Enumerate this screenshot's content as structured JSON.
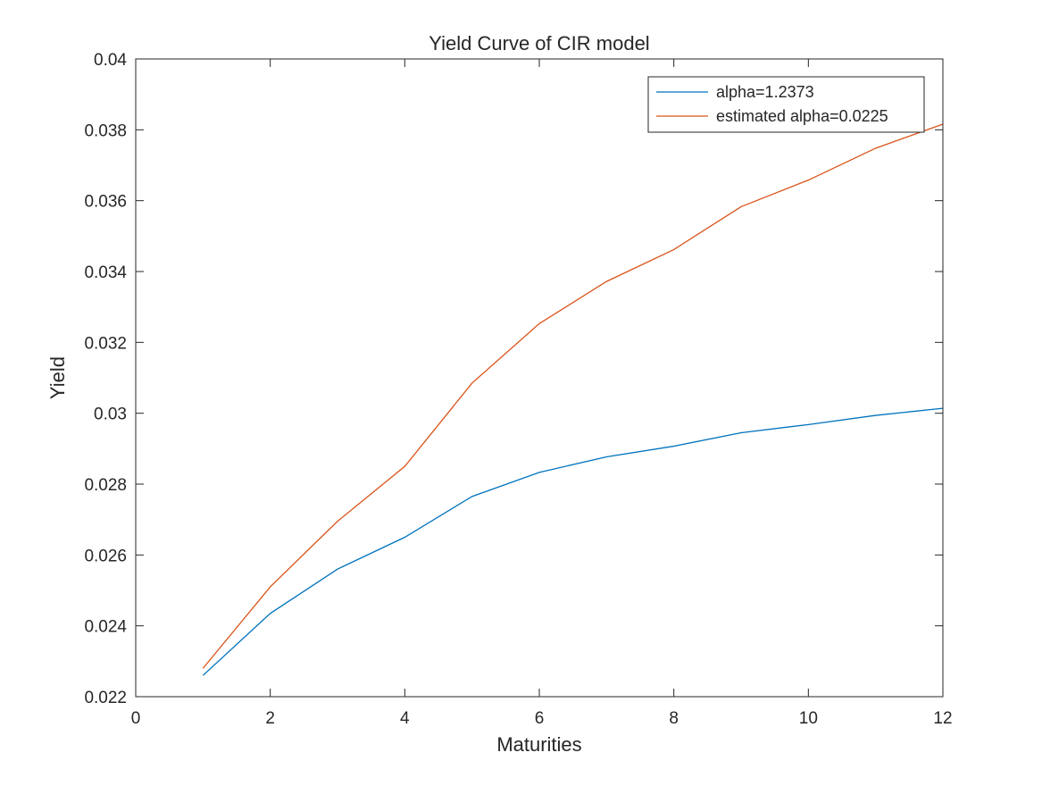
{
  "chart_data": {
    "type": "line",
    "title": "Yield Curve of CIR model",
    "xlabel": "Maturities",
    "ylabel": "Yield",
    "xlim": [
      0,
      12
    ],
    "ylim": [
      0.022,
      0.04
    ],
    "xticks": [
      0,
      2,
      4,
      6,
      8,
      10,
      12
    ],
    "yticks": [
      0.022,
      0.024,
      0.026,
      0.028,
      0.03,
      0.032,
      0.034,
      0.036,
      0.038,
      0.04
    ],
    "xtick_labels": [
      "0",
      "2",
      "4",
      "6",
      "8",
      "10",
      "12"
    ],
    "ytick_labels": [
      "0.022",
      "0.024",
      "0.026",
      "0.028",
      "0.03",
      "0.032",
      "0.034",
      "0.036",
      "0.038",
      "0.04"
    ],
    "grid": false,
    "legend_position": "top-right",
    "x": [
      1,
      2,
      3,
      4,
      5,
      6,
      7,
      8,
      9,
      10,
      11,
      12
    ],
    "series": [
      {
        "name": "alpha=1.2373",
        "color": "#0072BD",
        "values": [
          0.0226,
          0.02435,
          0.0256,
          0.0265,
          0.02765,
          0.02833,
          0.02877,
          0.02907,
          0.02945,
          0.02968,
          0.02994,
          0.03014
        ]
      },
      {
        "name": "estimated alpha=0.0225",
        "color": "#D95319",
        "values": [
          0.0228,
          0.0251,
          0.02695,
          0.0285,
          0.03085,
          0.03253,
          0.03372,
          0.03462,
          0.03583,
          0.03658,
          0.03748,
          0.03816
        ]
      }
    ]
  }
}
